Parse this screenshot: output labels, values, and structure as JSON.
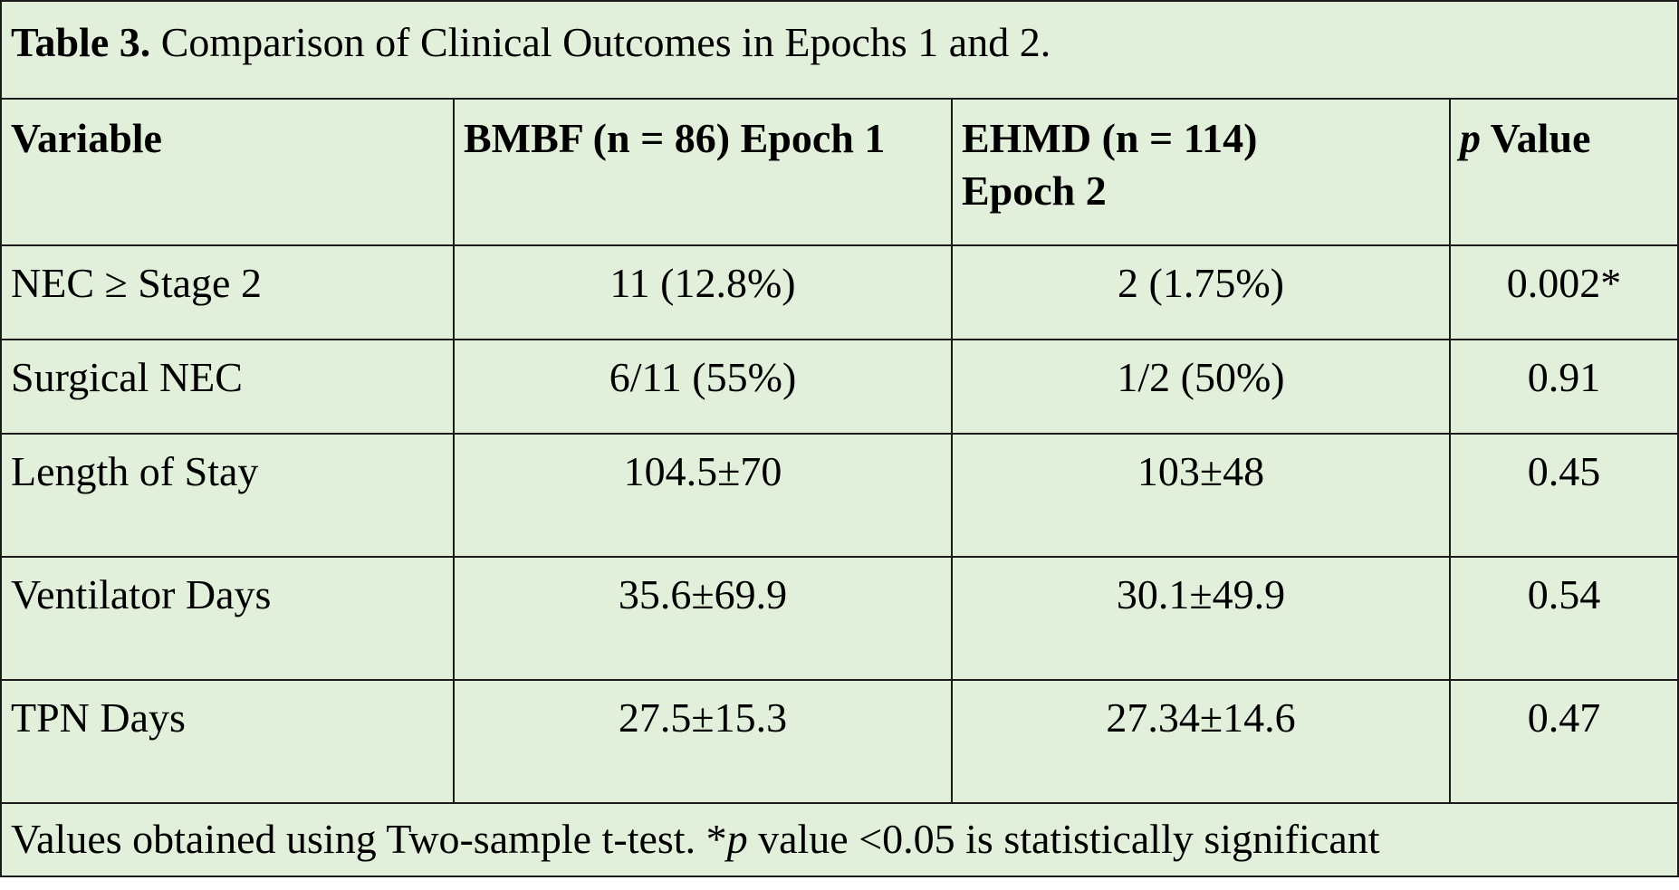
{
  "caption": {
    "label": "Table 3.",
    "text": " Comparison of Clinical Outcomes in Epochs 1 and 2."
  },
  "header": {
    "col1": "Variable",
    "col2": "BMBF (n = 86) Epoch 1",
    "col3_line1": "EHMD (n = 114)",
    "col3_line2": "Epoch 2",
    "col4_italic": "p",
    "col4_rest": " Value"
  },
  "rows": [
    {
      "variable": "NEC ≥ Stage 2",
      "bmbf": "11 (12.8%)",
      "ehmd": "2 (1.75%)",
      "p": "0.002*"
    },
    {
      "variable": "Surgical NEC",
      "bmbf": "6/11 (55%)",
      "ehmd": "1/2 (50%)",
      "p": "0.91"
    },
    {
      "variable": "Length of Stay",
      "bmbf": "104.5±70",
      "ehmd": "103±48",
      "p": "0.45"
    },
    {
      "variable": "Ventilator Days",
      "bmbf": "35.6±69.9",
      "ehmd": "30.1±49.9",
      "p": "0.54"
    },
    {
      "variable": "TPN Days",
      "bmbf": "27.5±15.3",
      "ehmd": "27.34±14.6",
      "p": "0.47"
    }
  ],
  "footer": {
    "part1": "Values obtained using Two-sample t-test. *",
    "italic": "p",
    "part2": " value <0.05 is statistically significant"
  }
}
